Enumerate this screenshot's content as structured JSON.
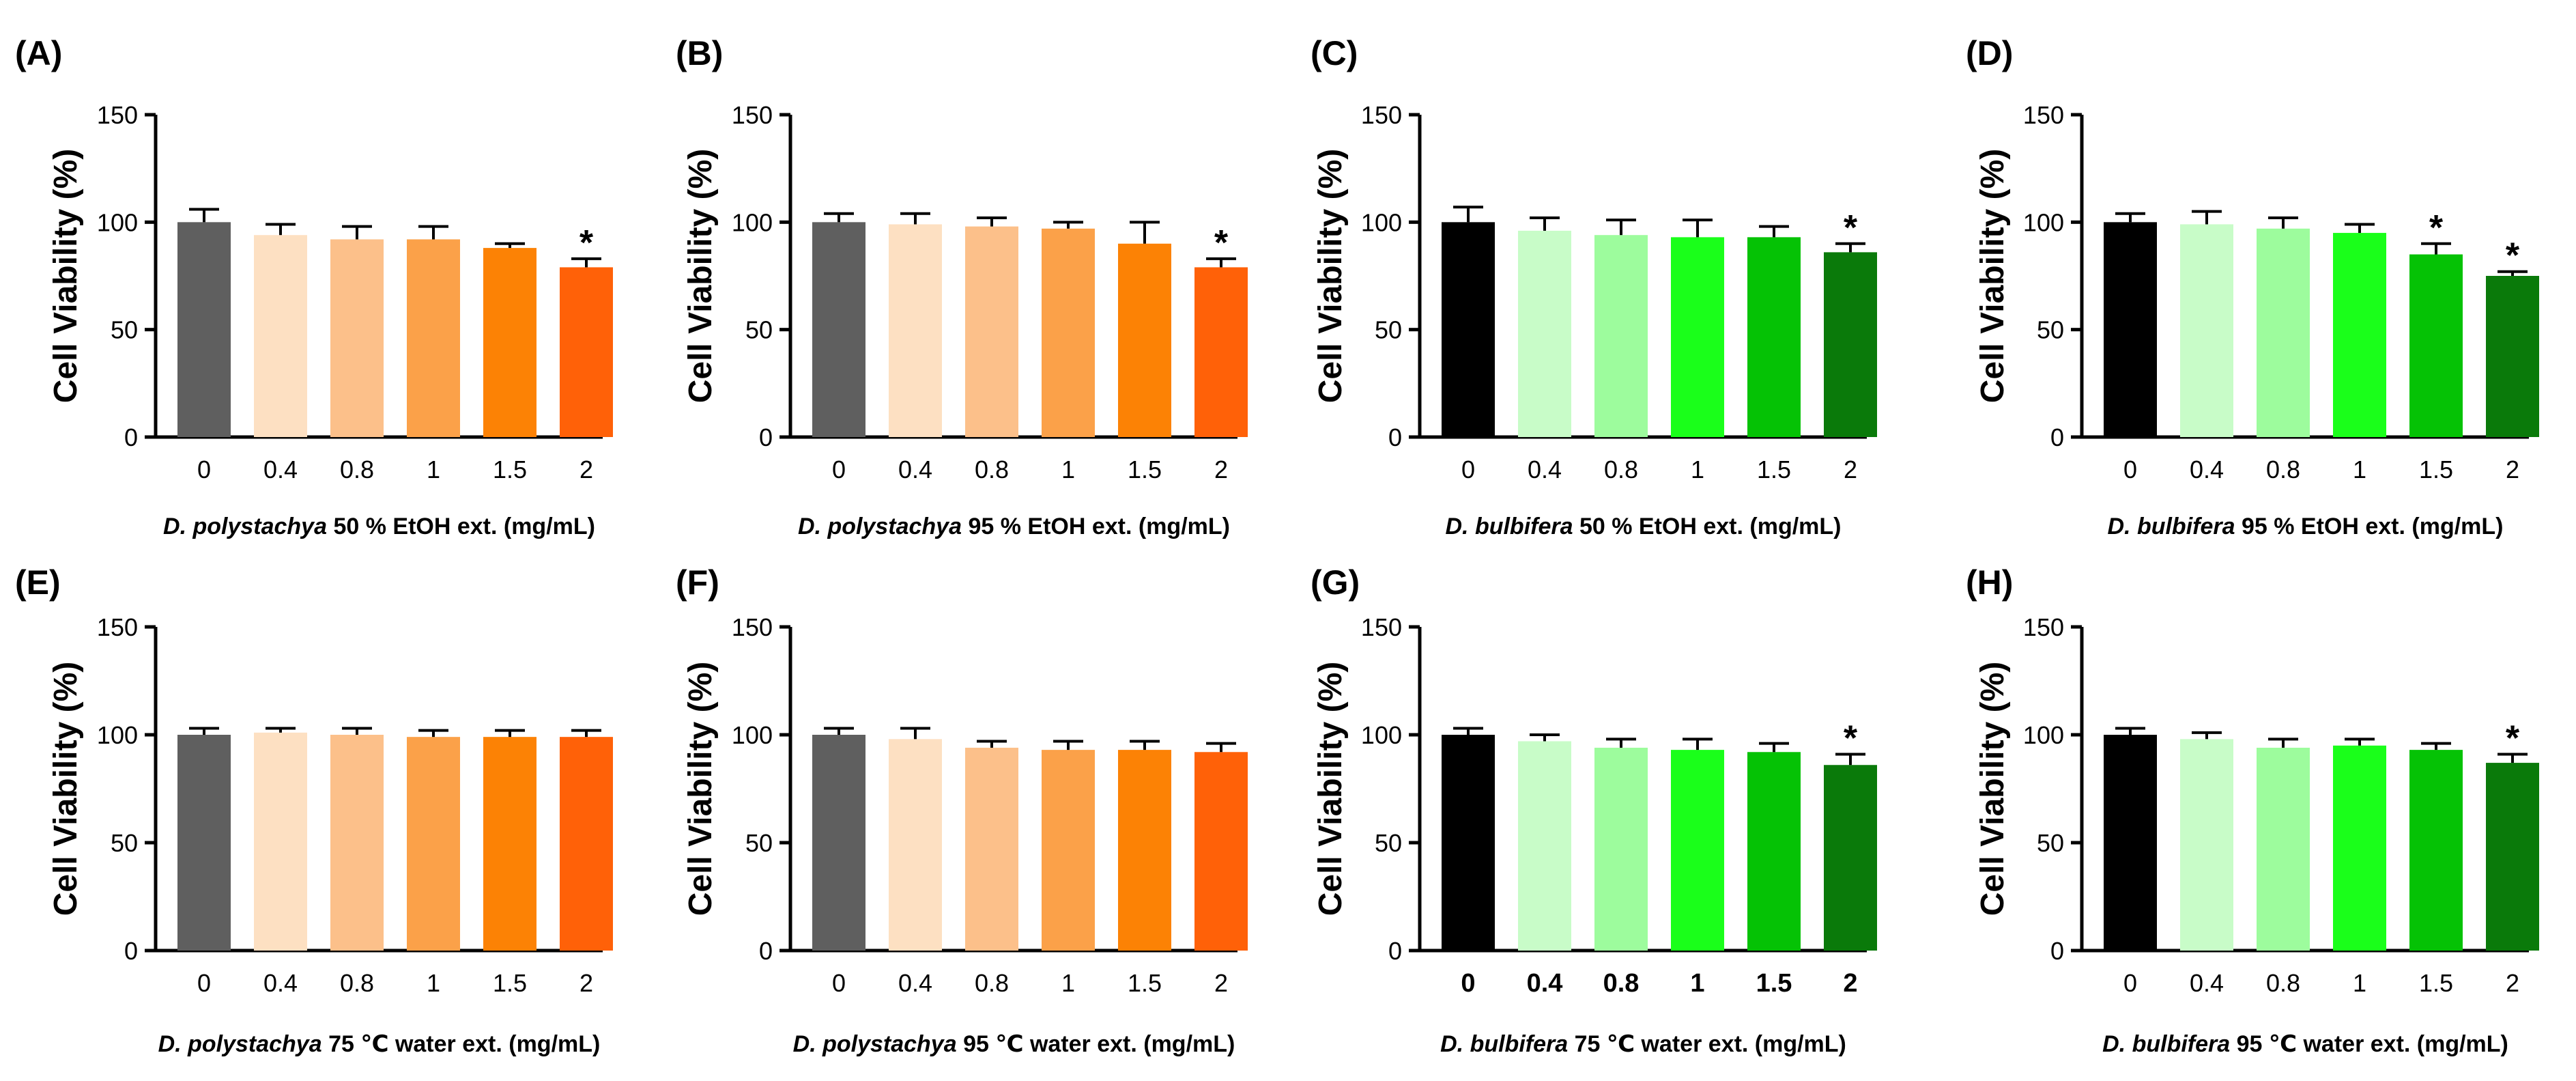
{
  "figure": {
    "caption_note": "Cell viability panels A–H"
  },
  "chart_data": [
    {
      "panel": "(A)",
      "type": "bar",
      "categories": [
        "0",
        "0.4",
        "0.8",
        "1",
        "1.5",
        "2"
      ],
      "values": [
        100,
        94,
        92,
        92,
        88,
        79
      ],
      "errors": [
        6,
        5,
        6,
        6,
        2,
        4
      ],
      "significance": [
        "",
        "",
        "",
        "",
        "",
        "*"
      ],
      "colors": [
        "#5f5f5f",
        "#fde0c2",
        "#fcc08a",
        "#fba149",
        "#fc8205",
        "#ff6108"
      ],
      "ylabel": "Cell Viability (%)",
      "xlabel_species": "D. polystachya",
      "xlabel_rest": " 50 % EtOH ext. (mg/mL)",
      "ylim": [
        0,
        150
      ],
      "yticks": [
        "0",
        "50",
        "100",
        "150"
      ],
      "bold_x_ticks": false
    },
    {
      "panel": "(B)",
      "type": "bar",
      "categories": [
        "0",
        "0.4",
        "0.8",
        "1",
        "1.5",
        "2"
      ],
      "values": [
        100,
        99,
        98,
        97,
        90,
        79
      ],
      "errors": [
        4,
        5,
        4,
        3,
        10,
        4
      ],
      "significance": [
        "",
        "",
        "",
        "",
        "",
        "*"
      ],
      "colors": [
        "#5f5f5f",
        "#fde0c2",
        "#fcc08a",
        "#fba149",
        "#fc8205",
        "#ff6108"
      ],
      "ylabel": "Cell Viability (%)",
      "xlabel_species": "D. polystachya",
      "xlabel_rest": " 95 % EtOH ext. (mg/mL)",
      "ylim": [
        0,
        150
      ],
      "yticks": [
        "0",
        "50",
        "100",
        "150"
      ],
      "bold_x_ticks": false
    },
    {
      "panel": "(C)",
      "type": "bar",
      "categories": [
        "0",
        "0.4",
        "0.8",
        "1",
        "1.5",
        "2"
      ],
      "values": [
        100,
        96,
        94,
        93,
        93,
        86
      ],
      "errors": [
        7,
        6,
        7,
        8,
        5,
        4
      ],
      "significance": [
        "",
        "",
        "",
        "",
        "",
        "*"
      ],
      "colors": [
        "#000000",
        "#c8fcc8",
        "#9dfc9d",
        "#1aff1a",
        "#05c205",
        "#0a7a0a"
      ],
      "ylabel": "Cell Viability (%)",
      "xlabel_species": "D. bulbifera",
      "xlabel_rest": " 50 % EtOH ext. (mg/mL)",
      "ylim": [
        0,
        150
      ],
      "yticks": [
        "0",
        "50",
        "100",
        "150"
      ],
      "bold_x_ticks": false
    },
    {
      "panel": "(D)",
      "type": "bar",
      "categories": [
        "0",
        "0.4",
        "0.8",
        "1",
        "1.5",
        "2"
      ],
      "values": [
        100,
        99,
        97,
        95,
        85,
        75
      ],
      "errors": [
        4,
        6,
        5,
        4,
        5,
        2
      ],
      "significance": [
        "",
        "",
        "",
        "",
        "*",
        "*"
      ],
      "colors": [
        "#000000",
        "#c8fcc8",
        "#9dfc9d",
        "#1aff1a",
        "#05c205",
        "#0a7a0a"
      ],
      "ylabel": "Cell Viability (%)",
      "xlabel_species": "D. bulbifera",
      "xlabel_rest": " 95 % EtOH ext. (mg/mL)",
      "ylim": [
        0,
        150
      ],
      "yticks": [
        "0",
        "50",
        "100",
        "150"
      ],
      "bold_x_ticks": false
    },
    {
      "panel": "(E)",
      "type": "bar",
      "categories": [
        "0",
        "0.4",
        "0.8",
        "1",
        "1.5",
        "2"
      ],
      "values": [
        100,
        101,
        100,
        99,
        99,
        99
      ],
      "errors": [
        3,
        2,
        3,
        3,
        3,
        3
      ],
      "significance": [
        "",
        "",
        "",
        "",
        "",
        ""
      ],
      "colors": [
        "#5f5f5f",
        "#fde0c2",
        "#fcc08a",
        "#fba149",
        "#fc8205",
        "#ff6108"
      ],
      "ylabel": "Cell Viability (%)",
      "xlabel_species": "D. polystachya",
      "xlabel_rest": " 75 ℃ water ext. (mg/mL)",
      "ylim": [
        0,
        150
      ],
      "yticks": [
        "0",
        "50",
        "100",
        "150"
      ],
      "bold_x_ticks": false
    },
    {
      "panel": "(F)",
      "type": "bar",
      "categories": [
        "0",
        "0.4",
        "0.8",
        "1",
        "1.5",
        "2"
      ],
      "values": [
        100,
        98,
        94,
        93,
        93,
        92
      ],
      "errors": [
        3,
        5,
        3,
        4,
        4,
        4
      ],
      "significance": [
        "",
        "",
        "",
        "",
        "",
        ""
      ],
      "colors": [
        "#5f5f5f",
        "#fde0c2",
        "#fcc08a",
        "#fba149",
        "#fc8205",
        "#ff6108"
      ],
      "ylabel": "Cell Viability (%)",
      "xlabel_species": "D. polystachya",
      "xlabel_rest": " 95 ℃ water ext. (mg/mL)",
      "ylim": [
        0,
        150
      ],
      "yticks": [
        "0",
        "50",
        "100",
        "150"
      ],
      "bold_x_ticks": false
    },
    {
      "panel": "(G)",
      "type": "bar",
      "categories": [
        "0",
        "0.4",
        "0.8",
        "1",
        "1.5",
        "2"
      ],
      "values": [
        100,
        97,
        94,
        93,
        92,
        86
      ],
      "errors": [
        3,
        3,
        4,
        5,
        4,
        5
      ],
      "significance": [
        "",
        "",
        "",
        "",
        "",
        "*"
      ],
      "colors": [
        "#000000",
        "#c8fcc8",
        "#9dfc9d",
        "#1aff1a",
        "#05c205",
        "#0a7a0a"
      ],
      "ylabel": "Cell Viability (%)",
      "xlabel_species": "D. bulbifera",
      "xlabel_rest": " 75 ℃ water ext. (mg/mL)",
      "ylim": [
        0,
        150
      ],
      "yticks": [
        "0",
        "50",
        "100",
        "150"
      ],
      "bold_x_ticks": true
    },
    {
      "panel": "(H)",
      "type": "bar",
      "categories": [
        "0",
        "0.4",
        "0.8",
        "1",
        "1.5",
        "2"
      ],
      "values": [
        100,
        98,
        94,
        95,
        93,
        87
      ],
      "errors": [
        3,
        3,
        4,
        3,
        3,
        4
      ],
      "significance": [
        "",
        "",
        "",
        "",
        "",
        "*"
      ],
      "colors": [
        "#000000",
        "#c8fcc8",
        "#9dfc9d",
        "#1aff1a",
        "#05c205",
        "#0a7a0a"
      ],
      "ylabel": "Cell Viability (%)",
      "xlabel_species": "D. bulbifera",
      "xlabel_rest": " 95 ℃ water ext. (mg/mL)",
      "ylim": [
        0,
        150
      ],
      "yticks": [
        "0",
        "50",
        "100",
        "150"
      ],
      "bold_x_ticks": false
    }
  ]
}
